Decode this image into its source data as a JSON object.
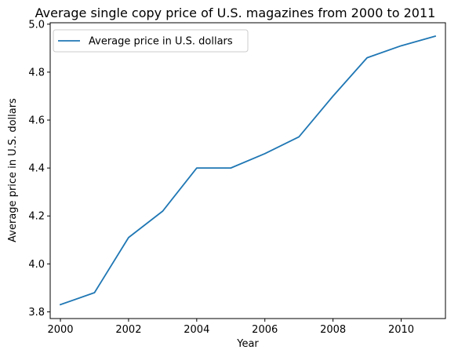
{
  "chart_data": {
    "type": "line",
    "title": "Average single copy price of U.S. magazines from 2000 to 2011",
    "xlabel": "Year",
    "ylabel": "Average price in U.S. dollars",
    "xlim": [
      1999.7,
      2011.3
    ],
    "ylim": [
      3.772,
      5.006
    ],
    "x_ticks": [
      2000,
      2002,
      2004,
      2006,
      2008,
      2010
    ],
    "y_ticks": [
      3.8,
      4.0,
      4.2,
      4.4,
      4.6,
      4.8,
      5.0
    ],
    "x_tick_labels": [
      "2000",
      "2002",
      "2004",
      "2006",
      "2008",
      "2010"
    ],
    "y_tick_labels": [
      "3.8",
      "4.0",
      "4.2",
      "4.4",
      "4.6",
      "4.8",
      "5.0"
    ],
    "grid": false,
    "legend_position": "top-left",
    "series": [
      {
        "name": "Average price in U.S. dollars",
        "color": "#1f77b4",
        "x": [
          2000,
          2001,
          2002,
          2003,
          2004,
          2005,
          2006,
          2007,
          2008,
          2009,
          2010,
          2011
        ],
        "values": [
          3.83,
          3.88,
          4.11,
          4.22,
          4.4,
          4.4,
          4.46,
          4.53,
          4.7,
          4.86,
          4.91,
          4.95
        ]
      }
    ]
  }
}
